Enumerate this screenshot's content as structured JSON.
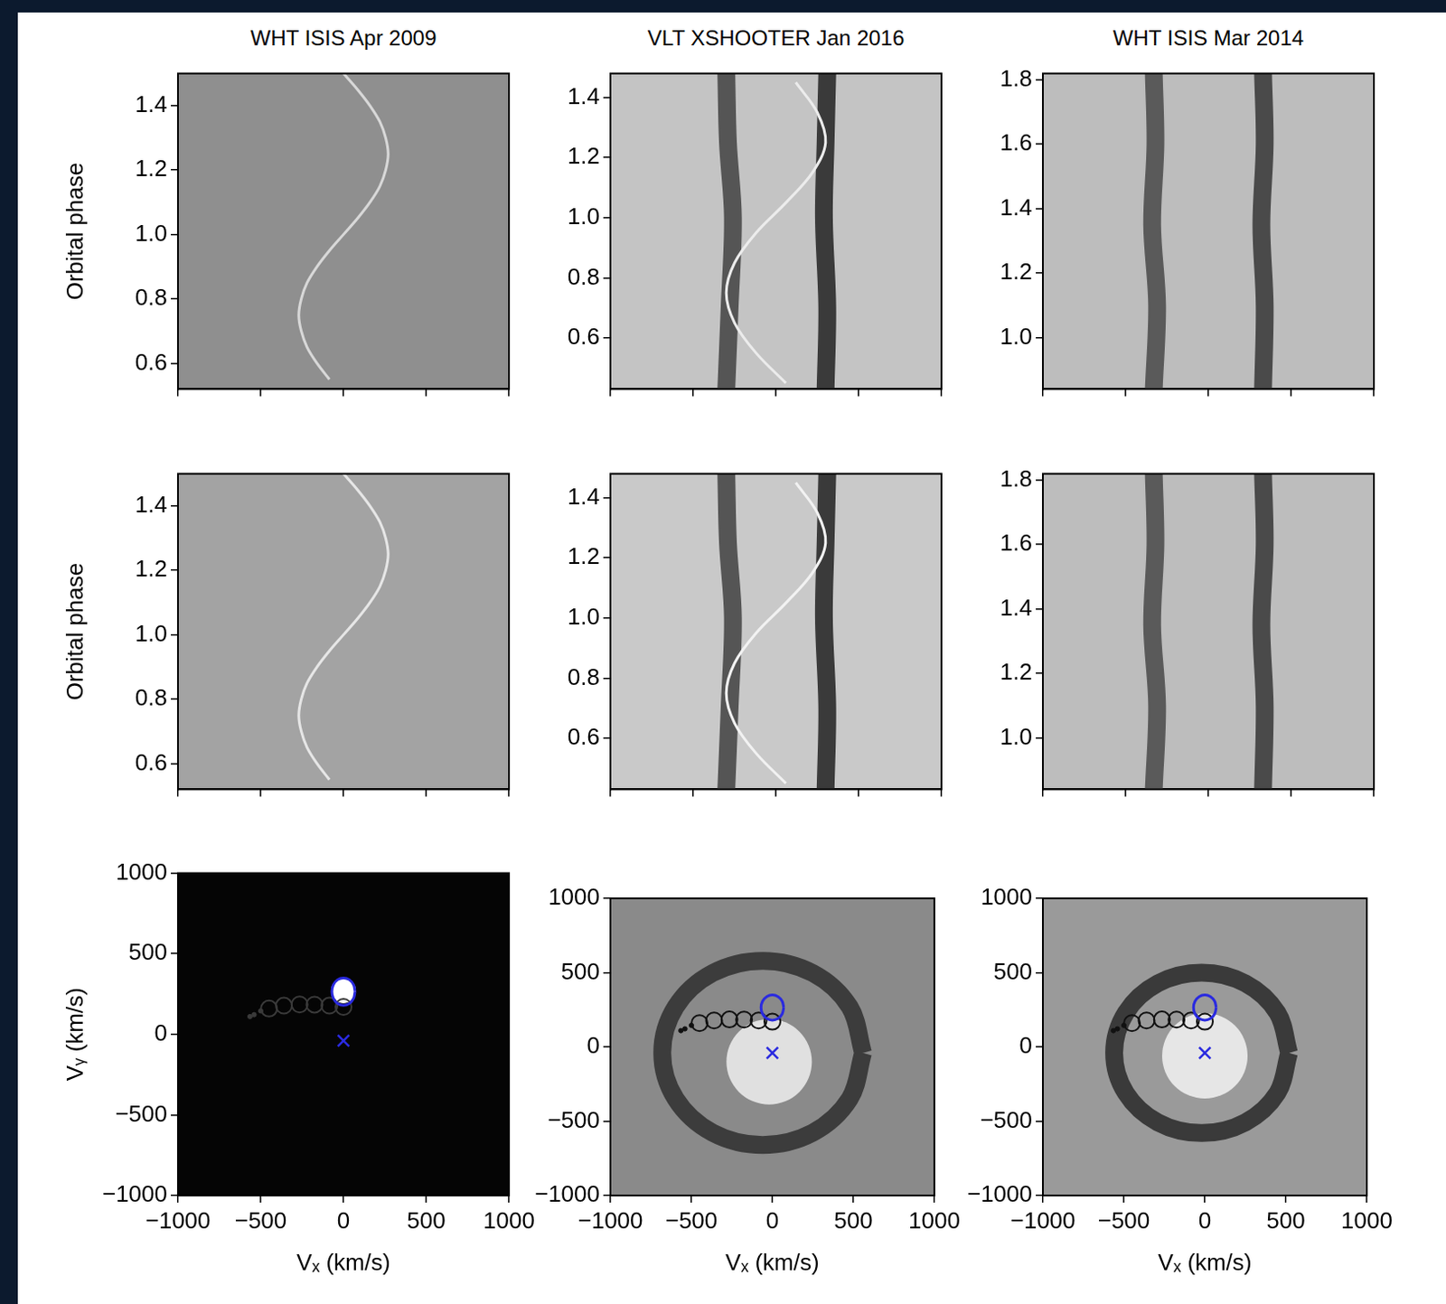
{
  "chart_data": [
    {
      "type": "line",
      "title": "WHT ISIS Apr 2009",
      "y_label": "Orbital phase",
      "xlim": [
        -1000,
        1000
      ],
      "ylim": [
        0.52,
        1.5
      ],
      "xticks": [
        -1000,
        -500,
        0,
        500,
        1000
      ],
      "yticks": [
        0.6,
        0.8,
        {
          "value": 1,
          "label": "1.0"
        },
        1.2,
        1.4
      ],
      "grid": false,
      "tick_labels": "y",
      "series": [
        {
          "color": "#d8d8d8",
          "line_style": "solid",
          "marker": "none",
          "x": [
            -85,
            -160,
            -220,
            -255,
            -270,
            -255,
            -220,
            -160,
            -85,
            0,
            85,
            160,
            220,
            255,
            270,
            255,
            220,
            160,
            85,
            0
          ],
          "values": [
            0.55,
            0.6,
            0.65,
            0.7,
            0.75,
            0.8,
            0.85,
            0.9,
            0.95,
            1.0,
            1.05,
            1.1,
            1.15,
            1.2,
            1.25,
            1.3,
            1.35,
            1.4,
            1.45,
            1.5
          ]
        }
      ]
    },
    {
      "type": "line",
      "title": "VLT XSHOOTER Jan 2016",
      "xlim": [
        -1000,
        1000
      ],
      "ylim": [
        0.43,
        1.48
      ],
      "xticks": [
        -1000,
        -500,
        0,
        500,
        1000
      ],
      "yticks": [
        0.6,
        0.8,
        {
          "value": 1,
          "label": "1.0"
        },
        1.2,
        1.4
      ],
      "grid": false,
      "tick_labels": "y",
      "series": [
        {
          "color": "#555555",
          "line_style": "thick",
          "marker": "none",
          "x": [
            -300,
            -280,
            -260,
            -290,
            -300
          ],
          "values": [
            0.43,
            0.7,
            1.0,
            1.25,
            1.48
          ]
        },
        {
          "color": "#3a3a3a",
          "line_style": "thick",
          "marker": "none",
          "x": [
            300,
            310,
            290,
            300,
            310
          ],
          "values": [
            0.43,
            0.7,
            1.0,
            1.25,
            1.48
          ]
        },
        {
          "color": "#ececec",
          "line_style": "solid",
          "marker": "none",
          "x": [
            60,
            -120,
            -250,
            -300,
            -250,
            -120,
            60,
            220,
            300,
            250,
            120
          ],
          "values": [
            0.45,
            0.55,
            0.65,
            0.75,
            0.85,
            0.95,
            1.05,
            1.15,
            1.25,
            1.35,
            1.45
          ]
        }
      ]
    },
    {
      "type": "line",
      "title": "WHT ISIS Mar 2014",
      "xlim": [
        -1000,
        1000
      ],
      "ylim": [
        0.84,
        1.82
      ],
      "xticks": [
        -1000,
        -500,
        0,
        500,
        1000
      ],
      "yticks": [
        {
          "value": 1,
          "label": "1.0"
        },
        1.2,
        1.4,
        1.6,
        1.8
      ],
      "grid": false,
      "tick_labels": "y",
      "series": [
        {
          "color": "#5a5a5a",
          "line_style": "thick",
          "marker": "none",
          "x": [
            -330,
            -310,
            -340,
            -320,
            -330
          ],
          "values": [
            0.84,
            1.1,
            1.35,
            1.6,
            1.82
          ]
        },
        {
          "color": "#4a4a4a",
          "line_style": "thick",
          "marker": "none",
          "x": [
            330,
            340,
            320,
            340,
            330
          ],
          "values": [
            0.84,
            1.1,
            1.35,
            1.6,
            1.82
          ]
        }
      ]
    },
    {
      "type": "line",
      "y_label": "Orbital phase",
      "xlim": [
        -1000,
        1000
      ],
      "ylim": [
        0.52,
        1.5
      ],
      "xticks": [
        -1000,
        -500,
        0,
        500,
        1000
      ],
      "yticks": [
        0.6,
        0.8,
        {
          "value": 1,
          "label": "1.0"
        },
        1.2,
        1.4
      ],
      "grid": false,
      "tick_labels": "y",
      "series": [
        {
          "color": "#e6e6e6",
          "line_style": "solid",
          "marker": "none",
          "x": [
            -85,
            -160,
            -220,
            -255,
            -270,
            -255,
            -220,
            -160,
            -85,
            0,
            85,
            160,
            220,
            255,
            270,
            255,
            220,
            160,
            85,
            0
          ],
          "values": [
            0.55,
            0.6,
            0.65,
            0.7,
            0.75,
            0.8,
            0.85,
            0.9,
            0.95,
            1.0,
            1.05,
            1.1,
            1.15,
            1.2,
            1.25,
            1.3,
            1.35,
            1.4,
            1.45,
            1.5
          ]
        }
      ]
    },
    {
      "type": "line",
      "xlim": [
        -1000,
        1000
      ],
      "ylim": [
        0.43,
        1.48
      ],
      "xticks": [
        -1000,
        -500,
        0,
        500,
        1000
      ],
      "yticks": [
        0.6,
        0.8,
        {
          "value": 1,
          "label": "1.0"
        },
        1.2,
        1.4
      ],
      "grid": false,
      "tick_labels": "y",
      "series": [
        {
          "color": "#555555",
          "line_style": "thick",
          "marker": "none",
          "x": [
            -300,
            -280,
            -260,
            -290,
            -300
          ],
          "values": [
            0.43,
            0.7,
            1.0,
            1.25,
            1.48
          ]
        },
        {
          "color": "#3a3a3a",
          "line_style": "thick",
          "marker": "none",
          "x": [
            300,
            310,
            290,
            300,
            310
          ],
          "values": [
            0.43,
            0.7,
            1.0,
            1.25,
            1.48
          ]
        },
        {
          "color": "#f2f2f2",
          "line_style": "solid",
          "marker": "none",
          "x": [
            60,
            -120,
            -250,
            -300,
            -250,
            -120,
            60,
            220,
            300,
            250,
            120
          ],
          "values": [
            0.45,
            0.55,
            0.65,
            0.75,
            0.85,
            0.95,
            1.05,
            1.15,
            1.25,
            1.35,
            1.45
          ]
        }
      ]
    },
    {
      "type": "line",
      "xlim": [
        -1000,
        1000
      ],
      "ylim": [
        0.84,
        1.82
      ],
      "xticks": [
        -1000,
        -500,
        0,
        500,
        1000
      ],
      "yticks": [
        {
          "value": 1,
          "label": "1.0"
        },
        1.2,
        1.4,
        1.6,
        1.8
      ],
      "grid": false,
      "tick_labels": "y",
      "series": [
        {
          "color": "#5a5a5a",
          "line_style": "thick",
          "marker": "none",
          "x": [
            -330,
            -310,
            -340,
            -320,
            -330
          ],
          "values": [
            0.84,
            1.1,
            1.35,
            1.6,
            1.82
          ]
        },
        {
          "color": "#4a4a4a",
          "line_style": "thick",
          "marker": "none",
          "x": [
            330,
            340,
            320,
            340,
            330
          ],
          "values": [
            0.84,
            1.1,
            1.35,
            1.6,
            1.82
          ]
        }
      ]
    },
    {
      "type": "scatter",
      "x_label": "Vₓ (km/s)",
      "y_label": "Vᵧ (km/s)",
      "xlim": [
        -1000,
        1000
      ],
      "ylim": [
        -1000,
        1000
      ],
      "xticks": [
        {
          "value": -1000,
          "label": "−1000"
        },
        {
          "value": -500,
          "label": "−500"
        },
        0,
        500,
        1000
      ],
      "yticks": [
        {
          "value": -1000,
          "label": "−1000"
        },
        {
          "value": -500,
          "label": "−500"
        },
        0,
        500,
        1000
      ],
      "grid": false,
      "series": [
        {
          "color": "#ffffff",
          "line_style": "none",
          "marker": "spot",
          "x": [
            0
          ],
          "values": [
            270
          ]
        },
        {
          "color": "#3a3a3a",
          "line_style": "none",
          "marker": "open_circle",
          "x": [
            0,
            -85,
            -175,
            -265,
            -360,
            -450
          ],
          "values": [
            170,
            178,
            184,
            185,
            178,
            160
          ]
        },
        {
          "color": "#3a3a3a",
          "line_style": "none",
          "marker": "dot",
          "x": [
            -500,
            -540,
            -565
          ],
          "values": [
            145,
            122,
            110
          ]
        },
        {
          "color": "#2a2adf",
          "line_style": "solid",
          "marker": "none",
          "x": [
            70,
            61,
            35,
            0,
            -35,
            -61,
            -70,
            -61,
            -35,
            0,
            35,
            61,
            70
          ],
          "values": [
            265,
            307,
            339,
            350,
            339,
            307,
            265,
            223,
            191,
            180,
            191,
            223,
            265
          ]
        },
        {
          "color": "#2a2adf",
          "line_style": "none",
          "marker": "x",
          "x": [
            0
          ],
          "values": [
            -40
          ]
        }
      ]
    },
    {
      "type": "scatter",
      "x_label": "Vₓ (km/s)",
      "xlim": [
        -1000,
        1000
      ],
      "ylim": [
        -1000,
        1000
      ],
      "xticks": [
        {
          "value": -1000,
          "label": "−1000"
        },
        {
          "value": -500,
          "label": "−500"
        },
        0,
        500,
        1000
      ],
      "yticks": [
        {
          "value": -1000,
          "label": "−1000"
        },
        {
          "value": -500,
          "label": "−500"
        },
        0,
        500,
        1000
      ],
      "grid": false,
      "series": [
        {
          "color": "#e0e0e0",
          "line_style": "none",
          "marker": "disc",
          "x": [
            -20
          ],
          "values": [
            -100
          ]
        },
        {
          "color": "#3c3c3c",
          "line_style": "thick",
          "marker": "none",
          "x": [
            560,
            477,
            250,
            -60,
            -370,
            -597,
            -680,
            -597,
            -370,
            -60,
            250,
            477,
            560
          ],
          "values": [
            -40,
            270,
            497,
            580,
            497,
            270,
            -40,
            -350,
            -577,
            -660,
            -577,
            -350,
            -40
          ]
        },
        {
          "color": "#111111",
          "line_style": "none",
          "marker": "open_circle",
          "x": [
            0,
            -85,
            -175,
            -265,
            -360,
            -450
          ],
          "values": [
            170,
            178,
            184,
            185,
            178,
            160
          ]
        },
        {
          "color": "#111111",
          "line_style": "none",
          "marker": "dot",
          "x": [
            -500,
            -540,
            -565
          ],
          "values": [
            145,
            122,
            110
          ]
        },
        {
          "color": "#2a2adf",
          "line_style": "solid",
          "marker": "none",
          "x": [
            70,
            61,
            35,
            0,
            -35,
            -61,
            -70,
            -61,
            -35,
            0,
            35,
            61,
            70
          ],
          "values": [
            265,
            307,
            339,
            350,
            339,
            307,
            265,
            223,
            191,
            180,
            191,
            223,
            265
          ]
        },
        {
          "color": "#2a2adf",
          "line_style": "none",
          "marker": "x",
          "x": [
            0
          ],
          "values": [
            -40
          ]
        }
      ]
    },
    {
      "type": "scatter",
      "x_label": "Vₓ (km/s)",
      "xlim": [
        -1000,
        1000
      ],
      "ylim": [
        -1000,
        1000
      ],
      "xticks": [
        {
          "value": -1000,
          "label": "−1000"
        },
        {
          "value": -500,
          "label": "−500"
        },
        0,
        500,
        1000
      ],
      "yticks": [
        {
          "value": -1000,
          "label": "−1000"
        },
        {
          "value": -500,
          "label": "−500"
        },
        0,
        500,
        1000
      ],
      "grid": false,
      "series": [
        {
          "color": "#e6e6e6",
          "line_style": "none",
          "marker": "disc",
          "x": [
            0
          ],
          "values": [
            -60
          ]
        },
        {
          "color": "#3a3a3a",
          "line_style": "thick",
          "marker": "none",
          "x": [
            520,
            448,
            250,
            -20,
            -290,
            -488,
            -560,
            -488,
            -290,
            -20,
            250,
            448,
            520
          ],
          "values": [
            -40,
            230,
            428,
            500,
            428,
            230,
            -40,
            -310,
            -508,
            -580,
            -508,
            -310,
            -40
          ]
        },
        {
          "color": "#111111",
          "line_style": "none",
          "marker": "open_circle",
          "x": [
            0,
            -85,
            -175,
            -265,
            -360,
            -450
          ],
          "values": [
            170,
            178,
            184,
            185,
            178,
            160
          ]
        },
        {
          "color": "#111111",
          "line_style": "none",
          "marker": "dot",
          "x": [
            -500,
            -540,
            -565
          ],
          "values": [
            145,
            122,
            110
          ]
        },
        {
          "color": "#2a2adf",
          "line_style": "solid",
          "marker": "none",
          "x": [
            70,
            61,
            35,
            0,
            -35,
            -61,
            -70,
            -61,
            -35,
            0,
            35,
            61,
            70
          ],
          "values": [
            265,
            307,
            339,
            350,
            339,
            307,
            265,
            223,
            191,
            180,
            191,
            223,
            265
          ]
        },
        {
          "color": "#2a2adf",
          "line_style": "none",
          "marker": "x",
          "x": [
            0
          ],
          "values": [
            -40
          ]
        }
      ]
    }
  ]
}
